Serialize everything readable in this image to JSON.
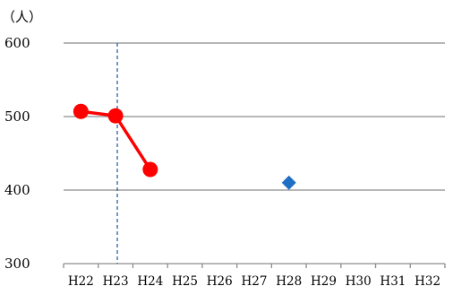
{
  "chart_data": {
    "type": "line",
    "unit_label": "（人）",
    "categories": [
      "H22",
      "H23",
      "H24",
      "H25",
      "H26",
      "H27",
      "H28",
      "H29",
      "H30",
      "H31",
      "H32"
    ],
    "ylim": [
      300,
      600
    ],
    "yticks": [
      300,
      400,
      500,
      600
    ],
    "grid": true,
    "series": [
      {
        "kind": "line",
        "marker": "circle",
        "color": "#ff0000",
        "points": [
          {
            "x": "H22",
            "y": 507
          },
          {
            "x": "H23",
            "y": 501
          },
          {
            "x": "H24",
            "y": 428
          }
        ]
      },
      {
        "kind": "point",
        "marker": "diamond",
        "color": "#1f6fc5",
        "points": [
          {
            "x": "H28",
            "y": 410
          }
        ]
      }
    ],
    "reference_line": {
      "between": [
        "H23",
        "H24"
      ],
      "position": 0.05,
      "style": "dashed",
      "color": "#2e5ea8"
    }
  }
}
